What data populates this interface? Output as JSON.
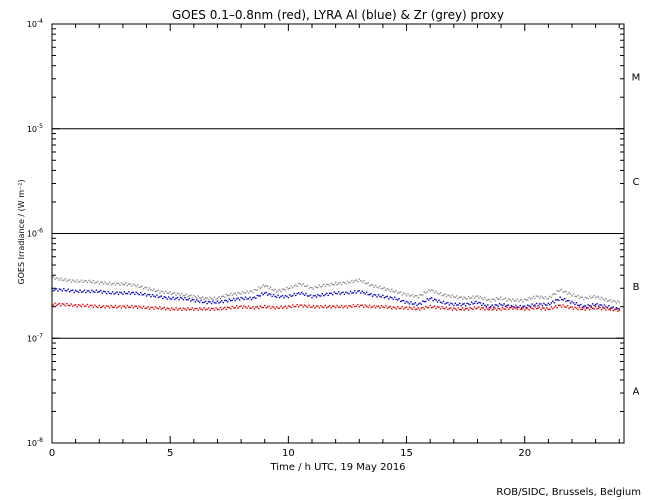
{
  "chart_data": {
    "type": "scatter",
    "title": "GOES 0.1–0.8nm (red), LYRA Al (blue) & Zr (grey) proxy",
    "xlabel": "Time / h UTC, 19 May 2016",
    "ylabel": "GOES Irradiance / (W m⁻²)",
    "xlim": [
      0,
      24.2
    ],
    "ylim": [
      1e-08,
      0.0001
    ],
    "yscale": "log",
    "x_ticks": [
      0,
      5,
      10,
      15,
      20
    ],
    "y_ticks": [
      {
        "value": 1e-08,
        "base": "10",
        "exp": "-8"
      },
      {
        "value": 1e-07,
        "base": "10",
        "exp": "-7"
      },
      {
        "value": 1e-06,
        "base": "10",
        "exp": "-6"
      },
      {
        "value": 1e-05,
        "base": "10",
        "exp": "-5"
      },
      {
        "value": 0.0001,
        "base": "10",
        "exp": "-4"
      }
    ],
    "flare_class_lines": [
      1e-07,
      1e-06,
      1e-05
    ],
    "flare_classes": [
      {
        "label": "A",
        "value": 3.16e-08
      },
      {
        "label": "B",
        "value": 3.16e-07
      },
      {
        "label": "C",
        "value": 3.16e-06
      },
      {
        "label": "M",
        "value": 3.16e-05
      }
    ],
    "series": [
      {
        "name": "Zr (grey) proxy",
        "color": "#8c8c8c",
        "x": [
          0,
          0.5,
          1,
          1.5,
          2,
          2.5,
          3,
          3.5,
          4,
          4.5,
          5,
          5.5,
          6,
          6.5,
          7,
          7.5,
          8,
          8.5,
          9,
          9.5,
          10,
          10.5,
          11,
          11.5,
          12,
          12.5,
          13,
          13.5,
          14,
          14.5,
          15,
          15.5,
          16,
          16.5,
          17,
          17.5,
          18,
          18.5,
          19,
          19.5,
          20,
          20.5,
          21,
          21.5,
          22,
          22.5,
          23,
          23.5,
          24
        ],
        "values": [
          3.8e-07,
          3.6e-07,
          3.5e-07,
          3.5e-07,
          3.4e-07,
          3.3e-07,
          3.3e-07,
          3.2e-07,
          3e-07,
          2.8e-07,
          2.7e-07,
          2.6e-07,
          2.5e-07,
          2.4e-07,
          2.4e-07,
          2.6e-07,
          2.7e-07,
          2.8e-07,
          3.2e-07,
          2.8e-07,
          3e-07,
          3.3e-07,
          3e-07,
          3.2e-07,
          3.3e-07,
          3.4e-07,
          3.6e-07,
          3.2e-07,
          3e-07,
          2.8e-07,
          2.6e-07,
          2.5e-07,
          2.9e-07,
          2.6e-07,
          2.5e-07,
          2.4e-07,
          2.5e-07,
          2.3e-07,
          2.4e-07,
          2.3e-07,
          2.3e-07,
          2.5e-07,
          2.4e-07,
          2.9e-07,
          2.6e-07,
          2.4e-07,
          2.5e-07,
          2.3e-07,
          2.2e-07
        ]
      },
      {
        "name": "LYRA Al (blue)",
        "color": "#0000cc",
        "x": [
          0,
          0.5,
          1,
          1.5,
          2,
          2.5,
          3,
          3.5,
          4,
          4.5,
          5,
          5.5,
          6,
          6.5,
          7,
          7.5,
          8,
          8.5,
          9,
          9.5,
          10,
          10.5,
          11,
          11.5,
          12,
          12.5,
          13,
          13.5,
          14,
          14.5,
          15,
          15.5,
          16,
          16.5,
          17,
          17.5,
          18,
          18.5,
          19,
          19.5,
          20,
          20.5,
          21,
          21.5,
          22,
          22.5,
          23,
          23.5,
          24
        ],
        "values": [
          2.9e-07,
          2.9e-07,
          2.8e-07,
          2.8e-07,
          2.8e-07,
          2.7e-07,
          2.7e-07,
          2.7e-07,
          2.6e-07,
          2.5e-07,
          2.4e-07,
          2.4e-07,
          2.3e-07,
          2.2e-07,
          2.2e-07,
          2.3e-07,
          2.4e-07,
          2.4e-07,
          2.7e-07,
          2.5e-07,
          2.5e-07,
          2.7e-07,
          2.5e-07,
          2.6e-07,
          2.7e-07,
          2.7e-07,
          2.8e-07,
          2.6e-07,
          2.5e-07,
          2.4e-07,
          2.2e-07,
          2.1e-07,
          2.4e-07,
          2.2e-07,
          2.1e-07,
          2.1e-07,
          2.2e-07,
          2e-07,
          2.1e-07,
          2e-07,
          2e-07,
          2.1e-07,
          2.1e-07,
          2.4e-07,
          2.2e-07,
          2e-07,
          2.1e-07,
          2e-07,
          1.9e-07
        ]
      },
      {
        "name": "GOES 0.1–0.8nm (red)",
        "color": "#dd0000",
        "x": [
          0,
          0.5,
          1,
          1.5,
          2,
          2.5,
          3,
          3.5,
          4,
          4.5,
          5,
          5.5,
          6,
          6.5,
          7,
          7.5,
          8,
          8.5,
          9,
          9.5,
          10,
          10.5,
          11,
          11.5,
          12,
          12.5,
          13,
          13.5,
          14,
          14.5,
          15,
          15.5,
          16,
          16.5,
          17,
          17.5,
          18,
          18.5,
          19,
          19.5,
          20,
          20.5,
          21,
          21.5,
          22,
          22.5,
          23,
          23.5,
          24
        ],
        "values": [
          2.1e-07,
          2.1e-07,
          2.05e-07,
          2.05e-07,
          2e-07,
          2e-07,
          2e-07,
          2e-07,
          1.95e-07,
          1.95e-07,
          1.9e-07,
          1.9e-07,
          1.9e-07,
          1.9e-07,
          1.9e-07,
          1.95e-07,
          2e-07,
          1.95e-07,
          2e-07,
          1.95e-07,
          2e-07,
          2.05e-07,
          2e-07,
          2e-07,
          2e-07,
          2e-07,
          2.05e-07,
          2e-07,
          2e-07,
          1.95e-07,
          1.95e-07,
          1.9e-07,
          2e-07,
          1.95e-07,
          1.9e-07,
          1.9e-07,
          1.95e-07,
          1.9e-07,
          1.9e-07,
          1.95e-07,
          1.9e-07,
          1.95e-07,
          1.9e-07,
          2.05e-07,
          1.95e-07,
          1.9e-07,
          1.95e-07,
          1.9e-07,
          1.85e-07
        ]
      }
    ],
    "grid": false,
    "legend": "none"
  },
  "credit": "ROB/SIDC, Brussels, Belgium"
}
